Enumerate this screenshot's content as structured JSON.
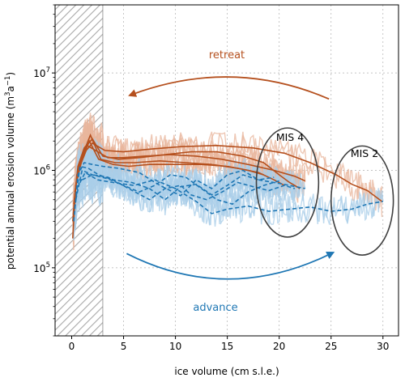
{
  "chart_data": {
    "type": "line",
    "xlabel": "ice volume (cm s.l.e.)",
    "ylabel_main": "potential annual erosion volume (m",
    "ylabel_sup": "3",
    "ylabel_mid": "a",
    "ylabel_sup2": "−1",
    "ylabel_end": ")",
    "xlim": [
      -1.6,
      31.5
    ],
    "ylim": [
      20000,
      50000000
    ],
    "yscale": "log",
    "grid": true,
    "x_ticks": [
      0,
      5,
      10,
      15,
      20,
      25,
      30
    ],
    "x_tick_labels": [
      "0",
      "5",
      "10",
      "15",
      "20",
      "25",
      "30"
    ],
    "y_ticks": [
      100000,
      1000000,
      10000000
    ],
    "y_tick_labels": [
      {
        "base": "10",
        "exp": "5"
      },
      {
        "base": "10",
        "exp": "6"
      },
      {
        "base": "10",
        "exp": "7"
      }
    ],
    "shaded_region": {
      "x0": -1.6,
      "x1": 3.0,
      "pattern": "hatched"
    },
    "colors": {
      "retreat": "#b5501e",
      "retreat_light": "#e8b59c",
      "advance": "#1f77b4",
      "advance_light": "#a9cde8",
      "circle": "#404040",
      "grid": "#b0b0b0",
      "hatch": "#9a9a9a"
    },
    "annotations": {
      "retreat_label": "retreat",
      "advance_label": "advance",
      "mis4_label": "MIS 4",
      "mis2_label": "MIS 2"
    },
    "circles": [
      {
        "name": "MIS 4",
        "x": 20.8,
        "y": 750000,
        "rx_data": 3.0,
        "ry_decades": 0.56
      },
      {
        "name": "MIS 2",
        "x": 28.0,
        "y": 490000,
        "rx_data": 3.0,
        "ry_decades": 0.56
      }
    ],
    "arrows": [
      {
        "name": "retreat",
        "from": [
          24.8,
          5400000
        ],
        "ctrl": [
          15.5,
          14500000
        ],
        "to": [
          5.8,
          6000000
        ]
      },
      {
        "name": "advance",
        "from": [
          5.3,
          140000
        ],
        "ctrl": [
          15.0,
          42000
        ],
        "to": [
          25.0,
          140000
        ]
      }
    ],
    "series": [
      {
        "group": "retreat",
        "style": "solid",
        "x": [
          29.9,
          28.5,
          27.0,
          25.5,
          23.0,
          20.5,
          17.5,
          14.0,
          10.5,
          7.5,
          5.0,
          3.2,
          2.0,
          1.4,
          0.8,
          0.4,
          0.1
        ],
        "y": [
          480000,
          620000,
          720000,
          900000,
          1200000,
          1500000,
          1700000,
          1800000,
          1750000,
          1650000,
          1550000,
          1600000,
          1900000,
          1600000,
          1100000,
          700000,
          300000
        ]
      },
      {
        "group": "retreat",
        "style": "solid",
        "x": [
          22.0,
          21.0,
          20.0,
          18.5,
          16.5,
          14.0,
          11.5,
          9.0,
          6.5,
          4.5,
          3.0,
          2.0,
          1.2,
          0.6,
          0.2
        ],
        "y": [
          650000,
          750000,
          900000,
          1200000,
          1400000,
          1550000,
          1550000,
          1450000,
          1350000,
          1300000,
          1400000,
          2100000,
          1700000,
          1100000,
          450000
        ]
      },
      {
        "group": "retreat",
        "style": "solid",
        "x": [
          22.5,
          21.5,
          19.5,
          17.0,
          14.5,
          12.0,
          9.5,
          7.0,
          5.0,
          3.5,
          2.3,
          1.5,
          0.8,
          0.3
        ],
        "y": [
          780000,
          870000,
          1000000,
          1150000,
          1300000,
          1400000,
          1450000,
          1400000,
          1350000,
          1350000,
          1600000,
          1800000,
          1200000,
          600000
        ]
      },
      {
        "group": "retreat",
        "style": "solid",
        "x": [
          20.5,
          19.5,
          18.0,
          16.0,
          13.5,
          11.0,
          8.5,
          6.0,
          4.2,
          2.8,
          1.8,
          1.1,
          0.5,
          0.15
        ],
        "y": [
          700000,
          800000,
          950000,
          1050000,
          1150000,
          1200000,
          1250000,
          1200000,
          1200000,
          1300000,
          2300000,
          1500000,
          900000,
          350000
        ]
      },
      {
        "group": "retreat",
        "style": "solid",
        "x": [
          18.5,
          17.0,
          15.0,
          12.5,
          10.0,
          7.5,
          5.5,
          4.0,
          2.6,
          1.7,
          1.0,
          0.4,
          0.1
        ],
        "y": [
          900000,
          1000000,
          1100000,
          1150000,
          1150000,
          1150000,
          1100000,
          1150000,
          1300000,
          2000000,
          1300000,
          700000,
          200000
        ]
      },
      {
        "group": "advance",
        "style": "dashed",
        "x": [
          0.2,
          0.6,
          1.2,
          2.0,
          3.0,
          4.5,
          6.5,
          8.5,
          10.5,
          12.0,
          13.5,
          15.0,
          16.5,
          18.0,
          19.5,
          21.0,
          22.5
        ],
        "y": [
          300000,
          900000,
          1200000,
          1150000,
          1100000,
          1050000,
          950000,
          700000,
          550000,
          800000,
          650000,
          900000,
          1000000,
          800000,
          750000,
          700000,
          650000
        ]
      },
      {
        "group": "advance",
        "style": "dashed",
        "x": [
          0.3,
          0.8,
          1.6,
          2.6,
          4.0,
          5.8,
          7.5,
          9.0,
          10.5,
          12.0,
          13.5,
          15.0,
          16.5,
          18.0,
          19.5
        ],
        "y": [
          400000,
          1100000,
          1050000,
          900000,
          800000,
          750000,
          650000,
          500000,
          680000,
          720000,
          560000,
          700000,
          900000,
          800000,
          850000
        ]
      },
      {
        "group": "advance",
        "style": "dashed",
        "x": [
          0.4,
          1.0,
          2.0,
          3.5,
          5.0,
          6.5,
          8.0,
          9.5,
          11.0,
          12.5,
          14.0,
          15.5,
          17.0,
          18.5,
          20.0
        ],
        "y": [
          500000,
          1000000,
          900000,
          820000,
          700000,
          600000,
          700000,
          900000,
          850000,
          650000,
          500000,
          450000,
          600000,
          700000,
          780000
        ]
      },
      {
        "group": "advance",
        "style": "dashed",
        "x": [
          0.5,
          1.3,
          2.5,
          4.0,
          6.0,
          8.0,
          10.0,
          12.0,
          13.5,
          15.0,
          17.0,
          19.0,
          21.0,
          23.0,
          25.0,
          27.0,
          28.5,
          30.0
        ],
        "y": [
          650000,
          950000,
          800000,
          750000,
          700000,
          800000,
          650000,
          480000,
          360000,
          400000,
          430000,
          380000,
          400000,
          420000,
          380000,
          400000,
          450000,
          480000
        ]
      },
      {
        "group": "advance",
        "style": "dashed",
        "x": [
          1.0,
          2.0,
          3.5,
          5.5,
          7.5,
          9.0,
          10.5,
          11.5,
          13.0,
          14.5,
          16.0,
          17.5,
          19.0,
          20.5,
          21.5
        ],
        "y": [
          800000,
          900000,
          850000,
          650000,
          500000,
          650000,
          700000,
          560000,
          500000,
          600000,
          750000,
          680000,
          620000,
          700000,
          650000
        ]
      }
    ]
  }
}
